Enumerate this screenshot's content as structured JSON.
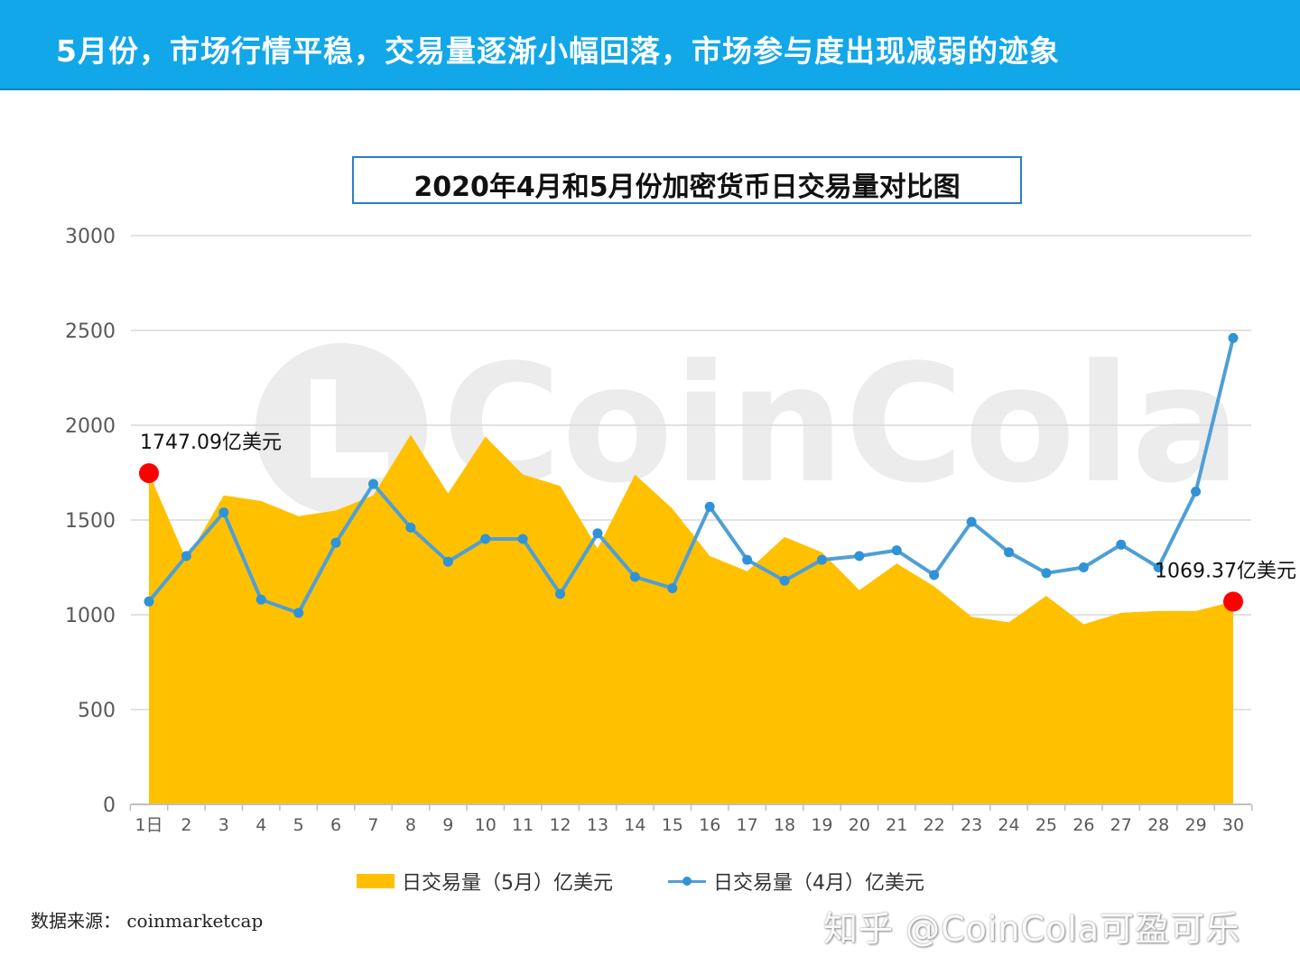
{
  "header": {
    "banner_title": "5月份，市场行情平稳，交易量逐渐小幅回落，市场参与度出现减弱的迹象"
  },
  "watermark": {
    "logo_text": "CoinCola",
    "zhihu_text": "知乎 @CoinCola可盈可乐"
  },
  "footer": {
    "source": "数据来源：  coinmarketcap"
  },
  "colors": {
    "banner": "#12a7e8",
    "area_may": "#ffc000",
    "line_april": "#4f9fd6",
    "marker_april": "#2f93d6",
    "highlight": "#ff0000"
  },
  "chart_data": {
    "type": "area",
    "title": "2020年4月和5月份加密货币日交易量对比图",
    "categories": [
      "1日",
      "2",
      "3",
      "4",
      "5",
      "6",
      "7",
      "8",
      "9",
      "10",
      "11",
      "12",
      "13",
      "14",
      "15",
      "16",
      "17",
      "18",
      "19",
      "20",
      "21",
      "22",
      "23",
      "24",
      "25",
      "26",
      "27",
      "28",
      "29",
      "30"
    ],
    "ylim": [
      0,
      3000
    ],
    "yticks": [
      0,
      500,
      1000,
      1500,
      2000,
      2500,
      3000
    ],
    "grid": true,
    "legend_position": "bottom",
    "series": [
      {
        "name": "日交易量（5月）亿美元",
        "type": "area",
        "values": [
          1747.09,
          1290,
          1630,
          1600,
          1520,
          1550,
          1630,
          1950,
          1640,
          1940,
          1740,
          1680,
          1350,
          1740,
          1560,
          1310,
          1230,
          1410,
          1330,
          1130,
          1270,
          1150,
          990,
          960,
          1100,
          950,
          1010,
          1020,
          1020,
          1069.37
        ]
      },
      {
        "name": "日交易量（4月）亿美元",
        "type": "line",
        "values": [
          1070,
          1310,
          1540,
          1080,
          1010,
          1380,
          1690,
          1460,
          1280,
          1400,
          1400,
          1110,
          1430,
          1200,
          1140,
          1570,
          1290,
          1180,
          1290,
          1310,
          1340,
          1210,
          1490,
          1330,
          1220,
          1250,
          1370,
          1250,
          1650,
          2460
        ]
      }
    ],
    "annotations": [
      {
        "text": "1747.09亿美元",
        "category_index": 0,
        "value": 1747.09
      },
      {
        "text": "1069.37亿美元",
        "category_index": 29,
        "value": 1069.37
      }
    ]
  }
}
